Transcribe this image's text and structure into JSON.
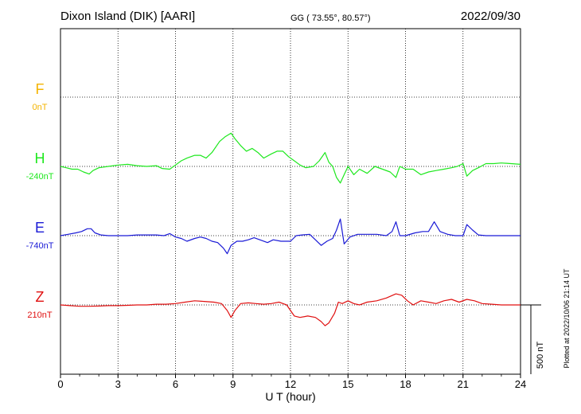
{
  "header": {
    "station": "Dixon Island (DIK)  [AARI]",
    "coords": "GG ( 73.55°,  80.57°)",
    "date": "2022/09/30"
  },
  "footer": {
    "plotted": "Plotted at 2022/10/06 21:14 UT"
  },
  "colors": {
    "F": "#f4b400",
    "H": "#1ee81e",
    "E": "#1a1ad6",
    "Z": "#e01010",
    "axis": "#000000"
  },
  "chart_data": {
    "type": "line",
    "title": "Dixon Island (DIK)  [AARI]",
    "xlabel": "U T (hour)",
    "ylabel": "",
    "xlim": [
      0,
      24
    ],
    "x_ticks": [
      "0",
      "3",
      "6",
      "9",
      "12",
      "15",
      "18",
      "21",
      "24"
    ],
    "scale_bar": "500 nT",
    "grid": true,
    "series": [
      {
        "name": "F",
        "baseline": "0nT",
        "points": []
      },
      {
        "name": "H",
        "baseline": "-240nT",
        "points": [
          [
            0.0,
            0
          ],
          [
            0.3,
            -10
          ],
          [
            0.6,
            -20
          ],
          [
            0.9,
            -20
          ],
          [
            1.2,
            -40
          ],
          [
            1.5,
            -55
          ],
          [
            1.7,
            -30
          ],
          [
            2.0,
            -10
          ],
          [
            2.5,
            0
          ],
          [
            3.0,
            10
          ],
          [
            3.5,
            15
          ],
          [
            4.0,
            5
          ],
          [
            4.5,
            0
          ],
          [
            5.0,
            5
          ],
          [
            5.3,
            -15
          ],
          [
            5.7,
            -20
          ],
          [
            6.0,
            10
          ],
          [
            6.3,
            40
          ],
          [
            6.6,
            60
          ],
          [
            7.0,
            80
          ],
          [
            7.3,
            80
          ],
          [
            7.6,
            60
          ],
          [
            7.9,
            100
          ],
          [
            8.3,
            180
          ],
          [
            8.6,
            215
          ],
          [
            8.9,
            240
          ],
          [
            9.1,
            200
          ],
          [
            9.4,
            150
          ],
          [
            9.7,
            110
          ],
          [
            10.0,
            130
          ],
          [
            10.3,
            100
          ],
          [
            10.6,
            60
          ],
          [
            11.0,
            90
          ],
          [
            11.3,
            110
          ],
          [
            11.6,
            110
          ],
          [
            11.9,
            70
          ],
          [
            12.2,
            40
          ],
          [
            12.5,
            10
          ],
          [
            12.8,
            -10
          ],
          [
            13.2,
            0
          ],
          [
            13.5,
            40
          ],
          [
            13.8,
            100
          ],
          [
            14.0,
            30
          ],
          [
            14.2,
            0
          ],
          [
            14.4,
            -80
          ],
          [
            14.6,
            -120
          ],
          [
            14.8,
            -60
          ],
          [
            15.0,
            0
          ],
          [
            15.3,
            -60
          ],
          [
            15.6,
            -20
          ],
          [
            16.0,
            -50
          ],
          [
            16.4,
            0
          ],
          [
            16.8,
            -20
          ],
          [
            17.2,
            -40
          ],
          [
            17.5,
            -80
          ],
          [
            17.7,
            0
          ],
          [
            18.0,
            -20
          ],
          [
            18.4,
            -20
          ],
          [
            18.8,
            -60
          ],
          [
            19.2,
            -40
          ],
          [
            19.6,
            -30
          ],
          [
            20.0,
            -20
          ],
          [
            20.4,
            -10
          ],
          [
            20.7,
            0
          ],
          [
            21.0,
            20
          ],
          [
            21.2,
            -70
          ],
          [
            21.5,
            -30
          ],
          [
            21.8,
            -10
          ],
          [
            22.2,
            20
          ],
          [
            22.6,
            20
          ],
          [
            23.0,
            25
          ],
          [
            23.5,
            20
          ],
          [
            24.0,
            15
          ]
        ]
      },
      {
        "name": "E",
        "baseline": "-740nT",
        "points": [
          [
            0.0,
            0
          ],
          [
            0.4,
            10
          ],
          [
            0.8,
            20
          ],
          [
            1.1,
            30
          ],
          [
            1.4,
            50
          ],
          [
            1.6,
            50
          ],
          [
            1.8,
            20
          ],
          [
            2.1,
            5
          ],
          [
            2.5,
            0
          ],
          [
            3.0,
            0
          ],
          [
            3.5,
            0
          ],
          [
            4.0,
            5
          ],
          [
            4.5,
            5
          ],
          [
            5.0,
            5
          ],
          [
            5.4,
            0
          ],
          [
            5.7,
            15
          ],
          [
            6.0,
            -10
          ],
          [
            6.3,
            -20
          ],
          [
            6.6,
            -40
          ],
          [
            7.0,
            -20
          ],
          [
            7.3,
            -10
          ],
          [
            7.6,
            -20
          ],
          [
            7.9,
            -40
          ],
          [
            8.2,
            -50
          ],
          [
            8.5,
            -90
          ],
          [
            8.7,
            -130
          ],
          [
            8.9,
            -70
          ],
          [
            9.2,
            -40
          ],
          [
            9.5,
            -40
          ],
          [
            9.8,
            -30
          ],
          [
            10.1,
            -15
          ],
          [
            10.4,
            -30
          ],
          [
            10.8,
            -50
          ],
          [
            11.1,
            -30
          ],
          [
            11.5,
            -40
          ],
          [
            12.0,
            -40
          ],
          [
            12.3,
            0
          ],
          [
            12.6,
            5
          ],
          [
            13.0,
            10
          ],
          [
            13.3,
            -30
          ],
          [
            13.6,
            -70
          ],
          [
            13.9,
            -40
          ],
          [
            14.2,
            -20
          ],
          [
            14.4,
            40
          ],
          [
            14.6,
            120
          ],
          [
            14.8,
            -60
          ],
          [
            15.1,
            -10
          ],
          [
            15.5,
            10
          ],
          [
            16.0,
            10
          ],
          [
            16.5,
            10
          ],
          [
            17.0,
            0
          ],
          [
            17.3,
            30
          ],
          [
            17.5,
            100
          ],
          [
            17.7,
            0
          ],
          [
            18.0,
            0
          ],
          [
            18.5,
            20
          ],
          [
            18.9,
            30
          ],
          [
            19.2,
            30
          ],
          [
            19.5,
            100
          ],
          [
            19.8,
            30
          ],
          [
            20.2,
            10
          ],
          [
            20.6,
            0
          ],
          [
            21.0,
            0
          ],
          [
            21.2,
            80
          ],
          [
            21.5,
            40
          ],
          [
            21.8,
            5
          ],
          [
            22.2,
            0
          ],
          [
            22.6,
            0
          ],
          [
            23.0,
            0
          ],
          [
            24.0,
            0
          ]
        ]
      },
      {
        "name": "Z",
        "baseline": "210nT",
        "points": [
          [
            0.0,
            0
          ],
          [
            0.5,
            -5
          ],
          [
            1.0,
            -10
          ],
          [
            1.5,
            -10
          ],
          [
            2.0,
            -8
          ],
          [
            2.5,
            -5
          ],
          [
            3.0,
            -5
          ],
          [
            3.5,
            -3
          ],
          [
            4.0,
            0
          ],
          [
            4.5,
            0
          ],
          [
            5.0,
            5
          ],
          [
            5.5,
            5
          ],
          [
            6.0,
            10
          ],
          [
            6.5,
            20
          ],
          [
            7.0,
            30
          ],
          [
            7.5,
            25
          ],
          [
            8.0,
            20
          ],
          [
            8.4,
            10
          ],
          [
            8.7,
            -40
          ],
          [
            8.9,
            -90
          ],
          [
            9.1,
            -40
          ],
          [
            9.4,
            10
          ],
          [
            9.8,
            15
          ],
          [
            10.2,
            10
          ],
          [
            10.6,
            5
          ],
          [
            11.0,
            10
          ],
          [
            11.4,
            20
          ],
          [
            11.8,
            0
          ],
          [
            12.0,
            -40
          ],
          [
            12.2,
            -80
          ],
          [
            12.5,
            -90
          ],
          [
            12.9,
            -80
          ],
          [
            13.3,
            -90
          ],
          [
            13.6,
            -120
          ],
          [
            13.8,
            -150
          ],
          [
            14.0,
            -130
          ],
          [
            14.3,
            -60
          ],
          [
            14.5,
            20
          ],
          [
            14.7,
            10
          ],
          [
            15.0,
            30
          ],
          [
            15.3,
            10
          ],
          [
            15.6,
            0
          ],
          [
            16.0,
            20
          ],
          [
            16.5,
            30
          ],
          [
            17.0,
            50
          ],
          [
            17.5,
            80
          ],
          [
            17.8,
            70
          ],
          [
            18.1,
            30
          ],
          [
            18.4,
            0
          ],
          [
            18.8,
            30
          ],
          [
            19.2,
            20
          ],
          [
            19.6,
            10
          ],
          [
            20.0,
            30
          ],
          [
            20.4,
            40
          ],
          [
            20.8,
            20
          ],
          [
            21.2,
            40
          ],
          [
            21.6,
            30
          ],
          [
            22.0,
            10
          ],
          [
            22.5,
            5
          ],
          [
            23.0,
            0
          ],
          [
            24.0,
            0
          ]
        ]
      }
    ]
  }
}
